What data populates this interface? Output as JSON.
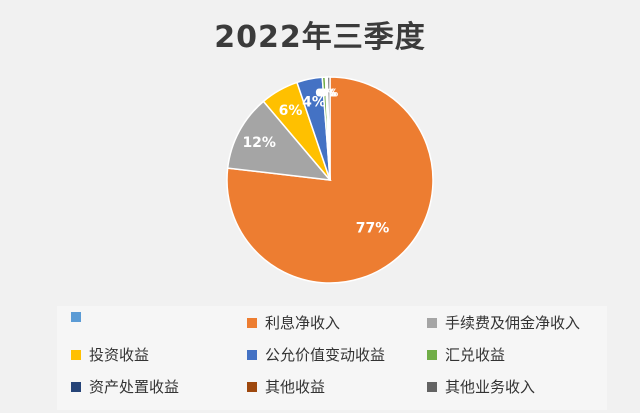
{
  "chart_data": {
    "type": "pie",
    "title": "2022年三季度",
    "slices": [
      {
        "name": "",
        "value": 0,
        "color": "#5b9bd5",
        "label": ""
      },
      {
        "name": "利息净收入",
        "value": 77,
        "color": "#ed7d31",
        "label": "77%"
      },
      {
        "name": "手续费及佣金净收入",
        "value": 12,
        "color": "#a5a5a5",
        "label": "12%"
      },
      {
        "name": "投资收益",
        "value": 6,
        "color": "#ffc000",
        "label": "6%"
      },
      {
        "name": "公允价值变动收益",
        "value": 4,
        "color": "#4472c4",
        "label": "4%"
      },
      {
        "name": "汇兑收益",
        "value": 0.5,
        "color": "#70ad47",
        "label": "0%"
      },
      {
        "name": "资产处置收益",
        "value": 0.1,
        "color": "#264478",
        "label": "0%"
      },
      {
        "name": "其他收益",
        "value": 0.2,
        "color": "#9e480e",
        "label": "0%"
      },
      {
        "name": "其他业务收入",
        "value": 0.4,
        "color": "#636363",
        "label": "0%"
      }
    ],
    "legend_position": "bottom"
  }
}
